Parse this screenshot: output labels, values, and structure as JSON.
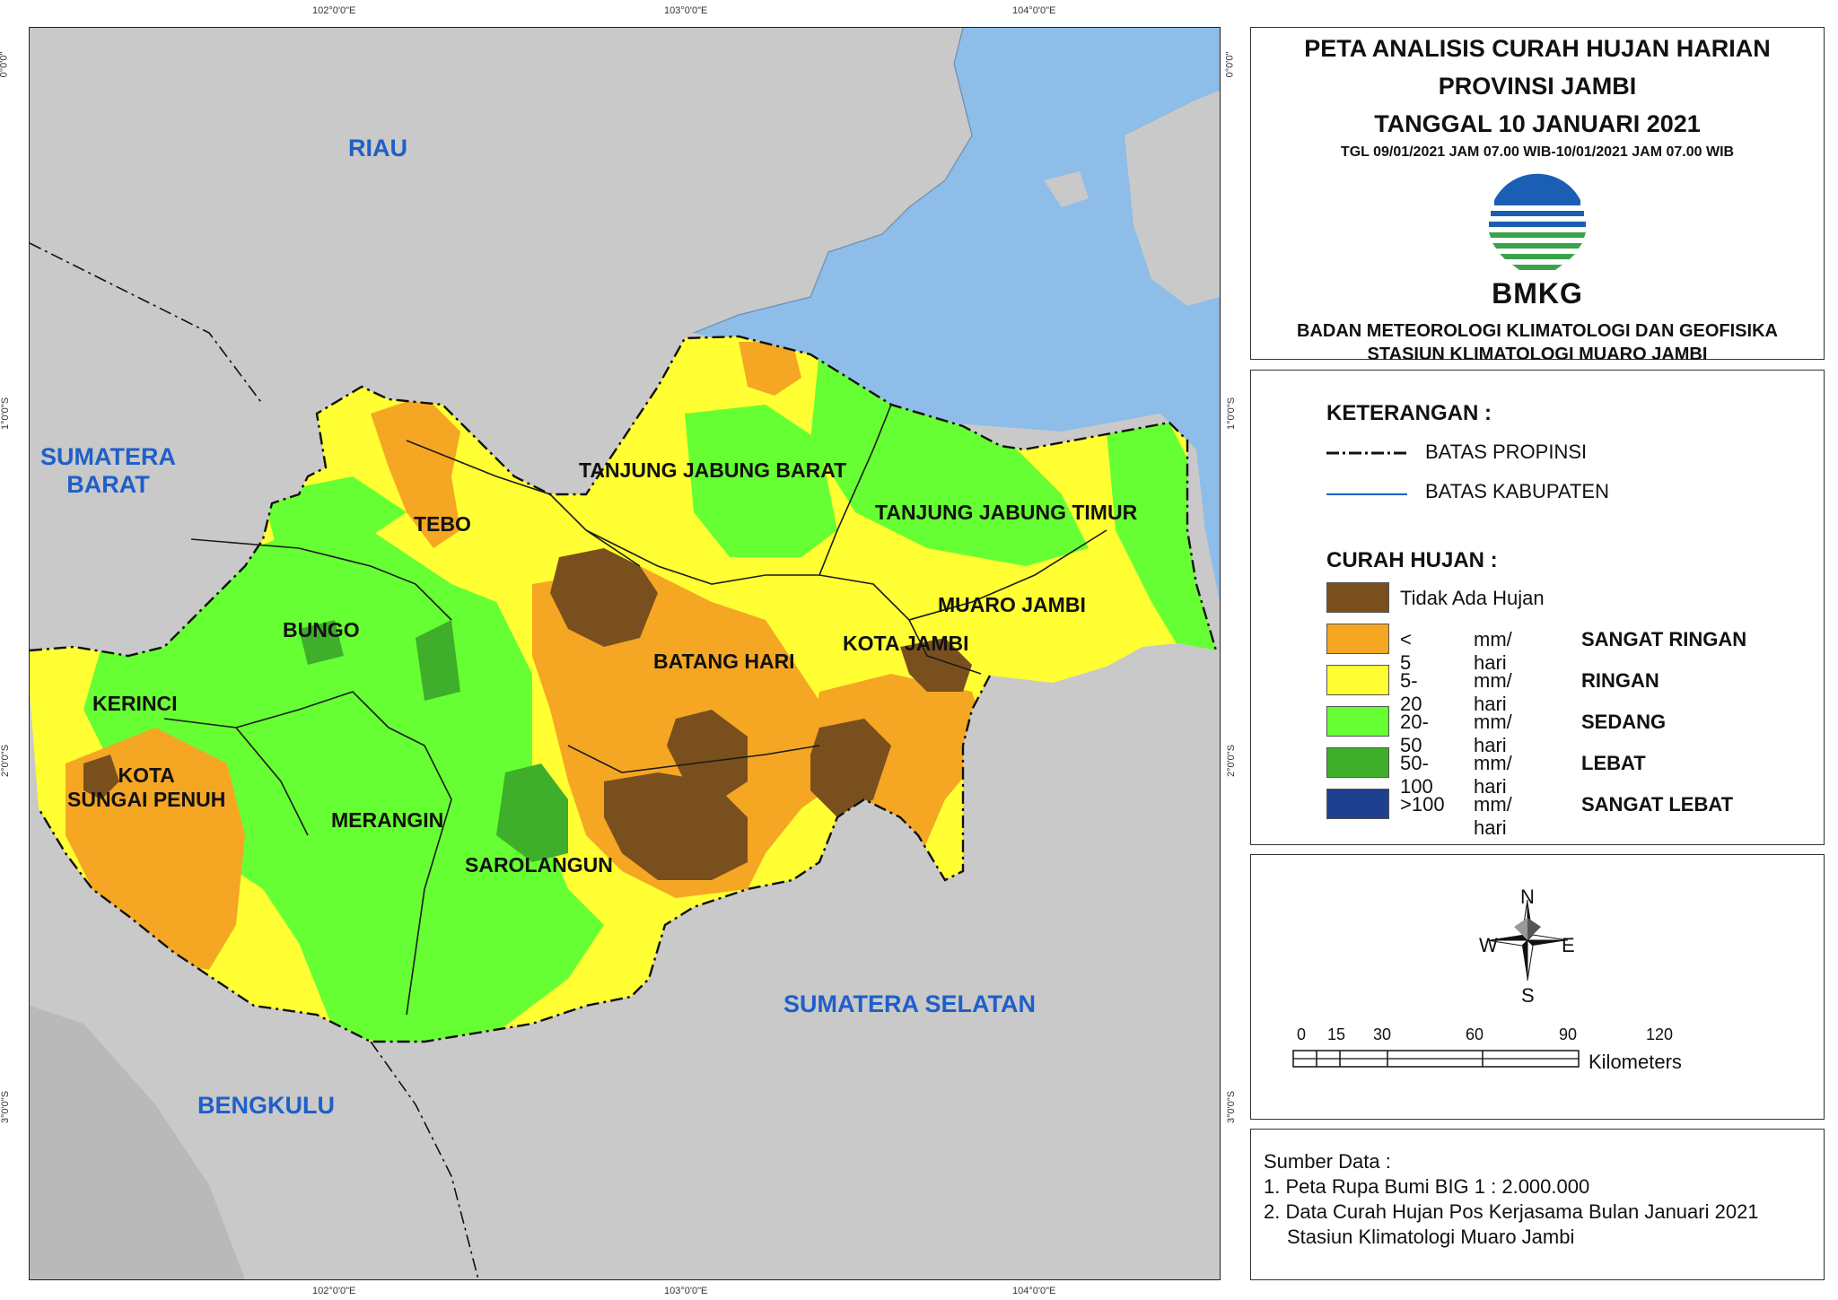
{
  "ticks": {
    "top": [
      "102°0'0\"E",
      "103°0'0\"E",
      "104°0'0\"E"
    ],
    "bottom": [
      "102°0'0\"E",
      "103°0'0\"E",
      "104°0'0\"E"
    ],
    "left": [
      "0°0'0\"",
      "1°0'0\"S",
      "2°0'0\"S",
      "3°0'0\"S"
    ],
    "right": [
      "0°0'0\"",
      "1°0'0\"S",
      "2°0'0\"S",
      "3°0'0\"S"
    ]
  },
  "regions": {
    "riau": "RIAU",
    "sumbar_line1": "SUMATERA",
    "sumbar_line2": "BARAT",
    "sumsel": "SUMATERA SELATAN",
    "bengkulu": "BENGKULU"
  },
  "kabupaten": {
    "tebo": "TEBO",
    "tanjabbar": "TANJUNG JABUNG BARAT",
    "tanjabtim": "TANJUNG JABUNG TIMUR",
    "bungo": "BUNGO",
    "muarojambi": "MUARO JAMBI",
    "kotajambi": "KOTA JAMBI",
    "batanghari": "BATANG HARI",
    "kerinci": "KERINCI",
    "kotasp_line1": "KOTA",
    "kotasp_line2": "SUNGAI PENUH",
    "merangin": "MERANGIN",
    "sarolangun": "SAROLANGUN"
  },
  "title": {
    "line1": "PETA ANALISIS CURAH HUJAN HARIAN",
    "line2": "PROVINSI JAMBI",
    "line3": "TANGGAL 10 JANUARI 2021",
    "period": "TGL 09/01/2021 JAM 07.00 WIB-10/01/2021 JAM 07.00 WIB",
    "logo_text": "BMKG",
    "agency_line1": "BADAN METEOROLOGI KLIMATOLOGI DAN GEOFISIKA",
    "agency_line2": "STASIUN KLIMATOLOGI MUARO JAMBI"
  },
  "legend": {
    "heading": "KETERANGAN :",
    "boundary_province": "BATAS PROPINSI",
    "boundary_regency": "BATAS KABUPATEN",
    "rain_heading": "CURAH HUJAN :",
    "classes": [
      {
        "range": "Tidak Ada Hujan",
        "unit": "",
        "name": "",
        "color": "#7a4f1e"
      },
      {
        "range": "< 5",
        "unit": "mm/ hari",
        "name": "SANGAT RINGAN",
        "color": "#f5a623"
      },
      {
        "range": "5-20",
        "unit": "mm/ hari",
        "name": "RINGAN",
        "color": "#ffff33"
      },
      {
        "range": "20-50",
        "unit": "mm/ hari",
        "name": "SEDANG",
        "color": "#66ff33"
      },
      {
        "range": "50-100",
        "unit": "mm/ hari",
        "name": "LEBAT",
        "color": "#3fae2a"
      },
      {
        "range": ">100",
        "unit": "mm/ hari",
        "name": "SANGAT LEBAT",
        "color": "#1f3f8f"
      }
    ]
  },
  "compass": {
    "n": "N",
    "s": "S",
    "e": "E",
    "w": "W"
  },
  "scale": {
    "labels": [
      "0",
      "15",
      "30",
      "60",
      "90",
      "120"
    ],
    "unit": "Kilometers"
  },
  "source": {
    "heading": "Sumber Data :",
    "item1": "1. Peta Rupa Bumi BIG 1 : 2.000.000",
    "item2": "2. Data Curah Hujan Pos Kerjasama Bulan Januari 2021",
    "item2b": "Stasiun Klimatologi Muaro Jambi"
  },
  "colors": {
    "sea": "#8dbde8",
    "land": "#c9c9c9",
    "label_blue": "#1f5fc9"
  }
}
